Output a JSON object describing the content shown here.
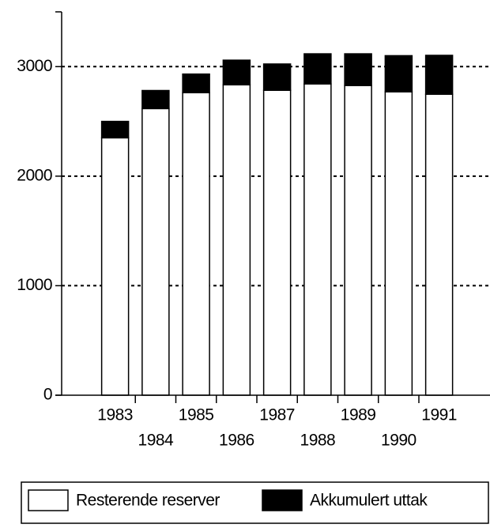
{
  "chart_data": {
    "type": "stacked-bar",
    "categories": [
      "1983",
      "1984",
      "1985",
      "1986",
      "1987",
      "1988",
      "1989",
      "1990",
      "1991"
    ],
    "series": [
      {
        "name": "Resterende reserver",
        "color": "#ffffff",
        "values": [
          2350,
          2617,
          2762,
          2834,
          2784,
          2842,
          2827,
          2770,
          2748
        ]
      },
      {
        "name": "Akkumulert uttak",
        "color": "#000000",
        "values": [
          150,
          165,
          170,
          225,
          240,
          275,
          290,
          330,
          355
        ]
      }
    ],
    "ylim": [
      0,
      3500
    ],
    "yticks": [
      0,
      1000,
      2000,
      3000
    ],
    "grid": true,
    "legend": "bottom"
  }
}
